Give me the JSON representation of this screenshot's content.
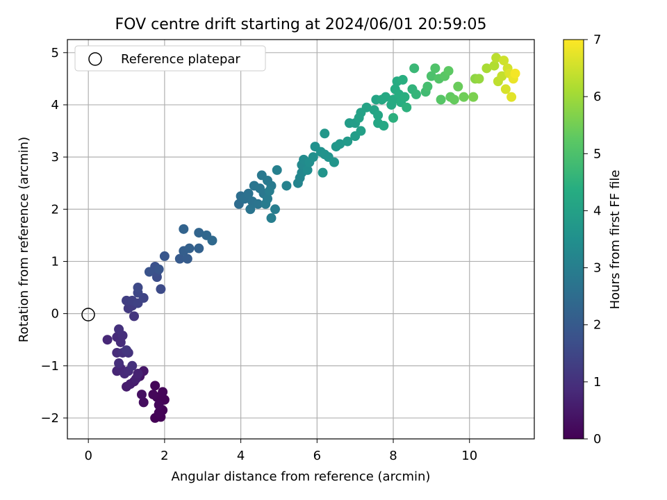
{
  "chart_data": {
    "type": "scatter",
    "title": "FOV centre drift starting at 2024/06/01 20:59:05",
    "xlabel": "Angular distance from reference (arcmin)",
    "ylabel": "Rotation from reference (arcmin)",
    "xlim": [
      -0.55,
      11.7
    ],
    "ylim": [
      -2.4,
      5.25
    ],
    "xticks": [
      0,
      2,
      4,
      6,
      8,
      10
    ],
    "yticks": [
      -2,
      -1,
      0,
      1,
      2,
      3,
      4,
      5
    ],
    "grid": true,
    "legend": {
      "placement": "upper-left",
      "entries": [
        "Reference platepar"
      ]
    },
    "reference_point": {
      "x": 0,
      "y": 0
    },
    "colorbar": {
      "label": "Hours from first FF file",
      "range": [
        0,
        7
      ],
      "ticks": [
        0,
        1,
        2,
        3,
        4,
        5,
        6,
        7
      ],
      "colormap": "viridis"
    },
    "points": [
      {
        "x": 1.75,
        "y": -2.0,
        "h": 0.02
      },
      {
        "x": 1.9,
        "y": -1.98,
        "h": 0.03
      },
      {
        "x": 1.95,
        "y": -1.85,
        "h": 0.05
      },
      {
        "x": 1.85,
        "y": -1.9,
        "h": 0.06
      },
      {
        "x": 2.0,
        "y": -1.65,
        "h": 0.07
      },
      {
        "x": 1.8,
        "y": -1.6,
        "h": 0.08
      },
      {
        "x": 1.95,
        "y": -1.5,
        "h": 0.09
      },
      {
        "x": 1.75,
        "y": -1.38,
        "h": 0.1
      },
      {
        "x": 1.7,
        "y": -1.55,
        "h": 0.12
      },
      {
        "x": 1.85,
        "y": -1.75,
        "h": 0.13
      },
      {
        "x": 1.45,
        "y": -1.7,
        "h": 0.25
      },
      {
        "x": 1.4,
        "y": -1.55,
        "h": 0.3
      },
      {
        "x": 1.35,
        "y": -1.2,
        "h": 0.4
      },
      {
        "x": 1.45,
        "y": -1.1,
        "h": 0.45
      },
      {
        "x": 1.2,
        "y": -1.3,
        "h": 0.5
      },
      {
        "x": 1.0,
        "y": -1.4,
        "h": 0.55
      },
      {
        "x": 1.1,
        "y": -1.35,
        "h": 0.6
      },
      {
        "x": 1.25,
        "y": -1.25,
        "h": 0.65
      },
      {
        "x": 1.3,
        "y": -1.15,
        "h": 0.7
      },
      {
        "x": 0.75,
        "y": -1.1,
        "h": 0.75
      },
      {
        "x": 0.85,
        "y": -1.05,
        "h": 0.8
      },
      {
        "x": 0.95,
        "y": -1.15,
        "h": 0.85
      },
      {
        "x": 1.05,
        "y": -1.1,
        "h": 0.9
      },
      {
        "x": 0.8,
        "y": -0.95,
        "h": 0.95
      },
      {
        "x": 1.15,
        "y": -1.0,
        "h": 1.0
      },
      {
        "x": 0.75,
        "y": -0.75,
        "h": 0.9
      },
      {
        "x": 0.9,
        "y": -0.75,
        "h": 1.0
      },
      {
        "x": 1.05,
        "y": -0.75,
        "h": 1.05
      },
      {
        "x": 1.0,
        "y": -0.7,
        "h": 1.1
      },
      {
        "x": 0.5,
        "y": -0.5,
        "h": 0.8
      },
      {
        "x": 0.75,
        "y": -0.45,
        "h": 0.85
      },
      {
        "x": 0.85,
        "y": -0.55,
        "h": 0.9
      },
      {
        "x": 0.9,
        "y": -0.42,
        "h": 0.95
      },
      {
        "x": 0.8,
        "y": -0.3,
        "h": 1.0
      },
      {
        "x": 1.2,
        "y": -0.05,
        "h": 1.1
      },
      {
        "x": 1.05,
        "y": 0.1,
        "h": 1.2
      },
      {
        "x": 1.15,
        "y": 0.15,
        "h": 1.25
      },
      {
        "x": 1.0,
        "y": 0.25,
        "h": 1.3
      },
      {
        "x": 1.15,
        "y": 0.25,
        "h": 1.35
      },
      {
        "x": 1.3,
        "y": 0.2,
        "h": 1.4
      },
      {
        "x": 1.45,
        "y": 0.3,
        "h": 1.45
      },
      {
        "x": 1.3,
        "y": 0.4,
        "h": 1.5
      },
      {
        "x": 1.3,
        "y": 0.5,
        "h": 1.55
      },
      {
        "x": 1.9,
        "y": 0.47,
        "h": 1.6
      },
      {
        "x": 1.8,
        "y": 0.7,
        "h": 1.65
      },
      {
        "x": 1.8,
        "y": 0.8,
        "h": 1.7
      },
      {
        "x": 1.75,
        "y": 0.9,
        "h": 1.75
      },
      {
        "x": 1.6,
        "y": 0.8,
        "h": 1.8
      },
      {
        "x": 1.85,
        "y": 0.85,
        "h": 1.85
      },
      {
        "x": 2.0,
        "y": 1.1,
        "h": 1.9
      },
      {
        "x": 2.4,
        "y": 1.05,
        "h": 2.0
      },
      {
        "x": 2.6,
        "y": 1.05,
        "h": 2.05
      },
      {
        "x": 2.5,
        "y": 1.2,
        "h": 2.1
      },
      {
        "x": 2.65,
        "y": 1.25,
        "h": 2.15
      },
      {
        "x": 2.9,
        "y": 1.25,
        "h": 2.2
      },
      {
        "x": 2.5,
        "y": 1.62,
        "h": 2.25
      },
      {
        "x": 2.9,
        "y": 1.55,
        "h": 2.3
      },
      {
        "x": 3.1,
        "y": 1.5,
        "h": 2.35
      },
      {
        "x": 3.25,
        "y": 1.4,
        "h": 2.4
      },
      {
        "x": 3.95,
        "y": 2.1,
        "h": 2.5
      },
      {
        "x": 4.0,
        "y": 2.25,
        "h": 2.55
      },
      {
        "x": 4.1,
        "y": 2.2,
        "h": 2.6
      },
      {
        "x": 4.2,
        "y": 2.3,
        "h": 2.62
      },
      {
        "x": 4.3,
        "y": 2.15,
        "h": 2.65
      },
      {
        "x": 4.25,
        "y": 2.0,
        "h": 2.7
      },
      {
        "x": 4.45,
        "y": 2.1,
        "h": 2.72
      },
      {
        "x": 4.35,
        "y": 2.45,
        "h": 2.75
      },
      {
        "x": 4.5,
        "y": 2.4,
        "h": 2.78
      },
      {
        "x": 4.6,
        "y": 2.3,
        "h": 2.8
      },
      {
        "x": 4.55,
        "y": 2.65,
        "h": 2.82
      },
      {
        "x": 4.7,
        "y": 2.55,
        "h": 2.85
      },
      {
        "x": 4.8,
        "y": 2.45,
        "h": 2.88
      },
      {
        "x": 4.65,
        "y": 2.1,
        "h": 2.9
      },
      {
        "x": 4.7,
        "y": 2.2,
        "h": 2.92
      },
      {
        "x": 4.75,
        "y": 2.35,
        "h": 2.95
      },
      {
        "x": 4.9,
        "y": 2.0,
        "h": 2.97
      },
      {
        "x": 4.8,
        "y": 1.83,
        "h": 3.0
      },
      {
        "x": 4.95,
        "y": 2.75,
        "h": 3.05
      },
      {
        "x": 5.2,
        "y": 2.45,
        "h": 3.1
      },
      {
        "x": 5.5,
        "y": 2.5,
        "h": 3.15
      },
      {
        "x": 5.55,
        "y": 2.6,
        "h": 3.2
      },
      {
        "x": 5.6,
        "y": 2.7,
        "h": 3.25
      },
      {
        "x": 5.6,
        "y": 2.85,
        "h": 3.3
      },
      {
        "x": 5.65,
        "y": 2.95,
        "h": 3.35
      },
      {
        "x": 5.75,
        "y": 2.75,
        "h": 3.4
      },
      {
        "x": 5.8,
        "y": 2.9,
        "h": 3.45
      },
      {
        "x": 5.9,
        "y": 3.0,
        "h": 3.5
      },
      {
        "x": 5.95,
        "y": 3.2,
        "h": 3.52
      },
      {
        "x": 6.1,
        "y": 3.1,
        "h": 3.55
      },
      {
        "x": 6.2,
        "y": 3.05,
        "h": 3.58
      },
      {
        "x": 6.3,
        "y": 3.0,
        "h": 3.6
      },
      {
        "x": 6.15,
        "y": 2.7,
        "h": 3.62
      },
      {
        "x": 6.45,
        "y": 2.9,
        "h": 3.65
      },
      {
        "x": 6.5,
        "y": 3.2,
        "h": 3.7
      },
      {
        "x": 6.2,
        "y": 3.45,
        "h": 3.72
      },
      {
        "x": 6.6,
        "y": 3.25,
        "h": 3.75
      },
      {
        "x": 6.8,
        "y": 3.3,
        "h": 3.8
      },
      {
        "x": 6.85,
        "y": 3.65,
        "h": 3.85
      },
      {
        "x": 7.0,
        "y": 3.65,
        "h": 3.88
      },
      {
        "x": 7.0,
        "y": 3.4,
        "h": 3.9
      },
      {
        "x": 7.15,
        "y": 3.5,
        "h": 3.95
      },
      {
        "x": 7.1,
        "y": 3.75,
        "h": 4.0
      },
      {
        "x": 7.15,
        "y": 3.85,
        "h": 4.02
      },
      {
        "x": 7.3,
        "y": 3.95,
        "h": 4.05
      },
      {
        "x": 7.5,
        "y": 3.9,
        "h": 4.08
      },
      {
        "x": 7.55,
        "y": 4.1,
        "h": 4.1
      },
      {
        "x": 7.6,
        "y": 3.8,
        "h": 4.12
      },
      {
        "x": 7.6,
        "y": 3.65,
        "h": 4.15
      },
      {
        "x": 7.75,
        "y": 3.6,
        "h": 4.18
      },
      {
        "x": 7.7,
        "y": 4.1,
        "h": 4.2
      },
      {
        "x": 7.8,
        "y": 4.15,
        "h": 4.22
      },
      {
        "x": 7.95,
        "y": 4.0,
        "h": 4.25
      },
      {
        "x": 8.0,
        "y": 4.1,
        "h": 4.28
      },
      {
        "x": 8.05,
        "y": 4.3,
        "h": 4.3
      },
      {
        "x": 8.1,
        "y": 4.45,
        "h": 4.32
      },
      {
        "x": 8.15,
        "y": 4.2,
        "h": 4.35
      },
      {
        "x": 8.2,
        "y": 4.05,
        "h": 4.38
      },
      {
        "x": 8.25,
        "y": 4.48,
        "h": 4.4
      },
      {
        "x": 8.3,
        "y": 4.15,
        "h": 4.42
      },
      {
        "x": 8.0,
        "y": 3.75,
        "h": 4.45
      },
      {
        "x": 8.35,
        "y": 3.95,
        "h": 4.48
      },
      {
        "x": 8.5,
        "y": 4.3,
        "h": 4.55
      },
      {
        "x": 8.6,
        "y": 4.2,
        "h": 4.6
      },
      {
        "x": 8.55,
        "y": 4.7,
        "h": 4.7
      },
      {
        "x": 8.85,
        "y": 4.25,
        "h": 4.8
      },
      {
        "x": 8.9,
        "y": 4.35,
        "h": 4.9
      },
      {
        "x": 9.0,
        "y": 4.55,
        "h": 5.0
      },
      {
        "x": 9.1,
        "y": 4.7,
        "h": 5.05
      },
      {
        "x": 9.2,
        "y": 4.5,
        "h": 5.1
      },
      {
        "x": 9.25,
        "y": 4.1,
        "h": 5.15
      },
      {
        "x": 9.35,
        "y": 4.55,
        "h": 5.2
      },
      {
        "x": 9.45,
        "y": 4.65,
        "h": 5.25
      },
      {
        "x": 9.5,
        "y": 4.15,
        "h": 5.3
      },
      {
        "x": 9.6,
        "y": 4.1,
        "h": 5.35
      },
      {
        "x": 9.7,
        "y": 4.35,
        "h": 5.4
      },
      {
        "x": 9.85,
        "y": 4.15,
        "h": 5.45
      },
      {
        "x": 10.1,
        "y": 4.15,
        "h": 5.6
      },
      {
        "x": 10.15,
        "y": 4.5,
        "h": 5.8
      },
      {
        "x": 10.25,
        "y": 4.5,
        "h": 5.9
      },
      {
        "x": 10.45,
        "y": 4.7,
        "h": 6.1
      },
      {
        "x": 10.65,
        "y": 4.75,
        "h": 6.2
      },
      {
        "x": 10.7,
        "y": 4.9,
        "h": 6.3
      },
      {
        "x": 10.75,
        "y": 4.45,
        "h": 6.35
      },
      {
        "x": 10.85,
        "y": 4.55,
        "h": 6.4
      },
      {
        "x": 10.9,
        "y": 4.85,
        "h": 6.5
      },
      {
        "x": 11.0,
        "y": 4.7,
        "h": 6.55
      },
      {
        "x": 10.95,
        "y": 4.3,
        "h": 6.6
      },
      {
        "x": 11.05,
        "y": 4.6,
        "h": 6.65
      },
      {
        "x": 11.1,
        "y": 4.15,
        "h": 6.7
      },
      {
        "x": 11.15,
        "y": 4.5,
        "h": 6.8
      },
      {
        "x": 11.2,
        "y": 4.6,
        "h": 6.9
      }
    ]
  }
}
